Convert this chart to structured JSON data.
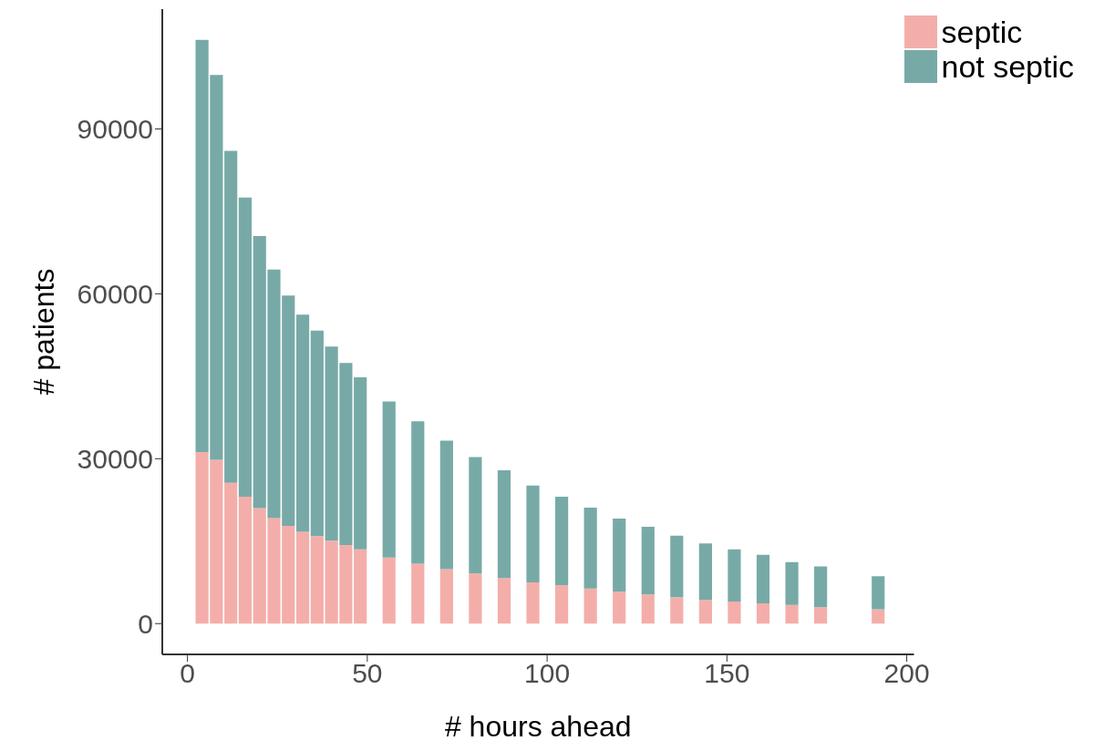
{
  "chart_data": {
    "type": "bar",
    "stacked": true,
    "xlabel": "# hours ahead",
    "ylabel": "# patients",
    "x": [
      4,
      8,
      12,
      16,
      20,
      24,
      28,
      32,
      36,
      40,
      44,
      48,
      56,
      64,
      72,
      80,
      88,
      96,
      104,
      112,
      120,
      128,
      136,
      144,
      152,
      160,
      168,
      176,
      192
    ],
    "series": [
      {
        "name": "septic",
        "color": "#f4aeaa",
        "values": [
          31200,
          29800,
          25600,
          23100,
          21000,
          19200,
          17800,
          16700,
          15900,
          15100,
          14300,
          13500,
          12000,
          10900,
          9900,
          9100,
          8300,
          7500,
          7000,
          6400,
          5800,
          5300,
          4800,
          4300,
          4000,
          3700,
          3400,
          3000,
          2600
        ]
      },
      {
        "name": "not septic",
        "color": "#77aaa7",
        "values": [
          75000,
          70000,
          60400,
          54400,
          49500,
          45200,
          41900,
          39500,
          37400,
          35300,
          33100,
          31300,
          28400,
          25900,
          23400,
          21200,
          19600,
          17600,
          16100,
          14700,
          13300,
          12300,
          11200,
          10300,
          9500,
          8800,
          7800,
          7400,
          6000
        ]
      }
    ],
    "xlim": [
      -7,
      202
    ],
    "xticks": [
      0,
      50,
      100,
      150,
      200
    ],
    "ylim": [
      -5600,
      111800
    ],
    "yticks": [
      0,
      30000,
      60000,
      90000
    ],
    "grid": false,
    "legend": "top right"
  }
}
